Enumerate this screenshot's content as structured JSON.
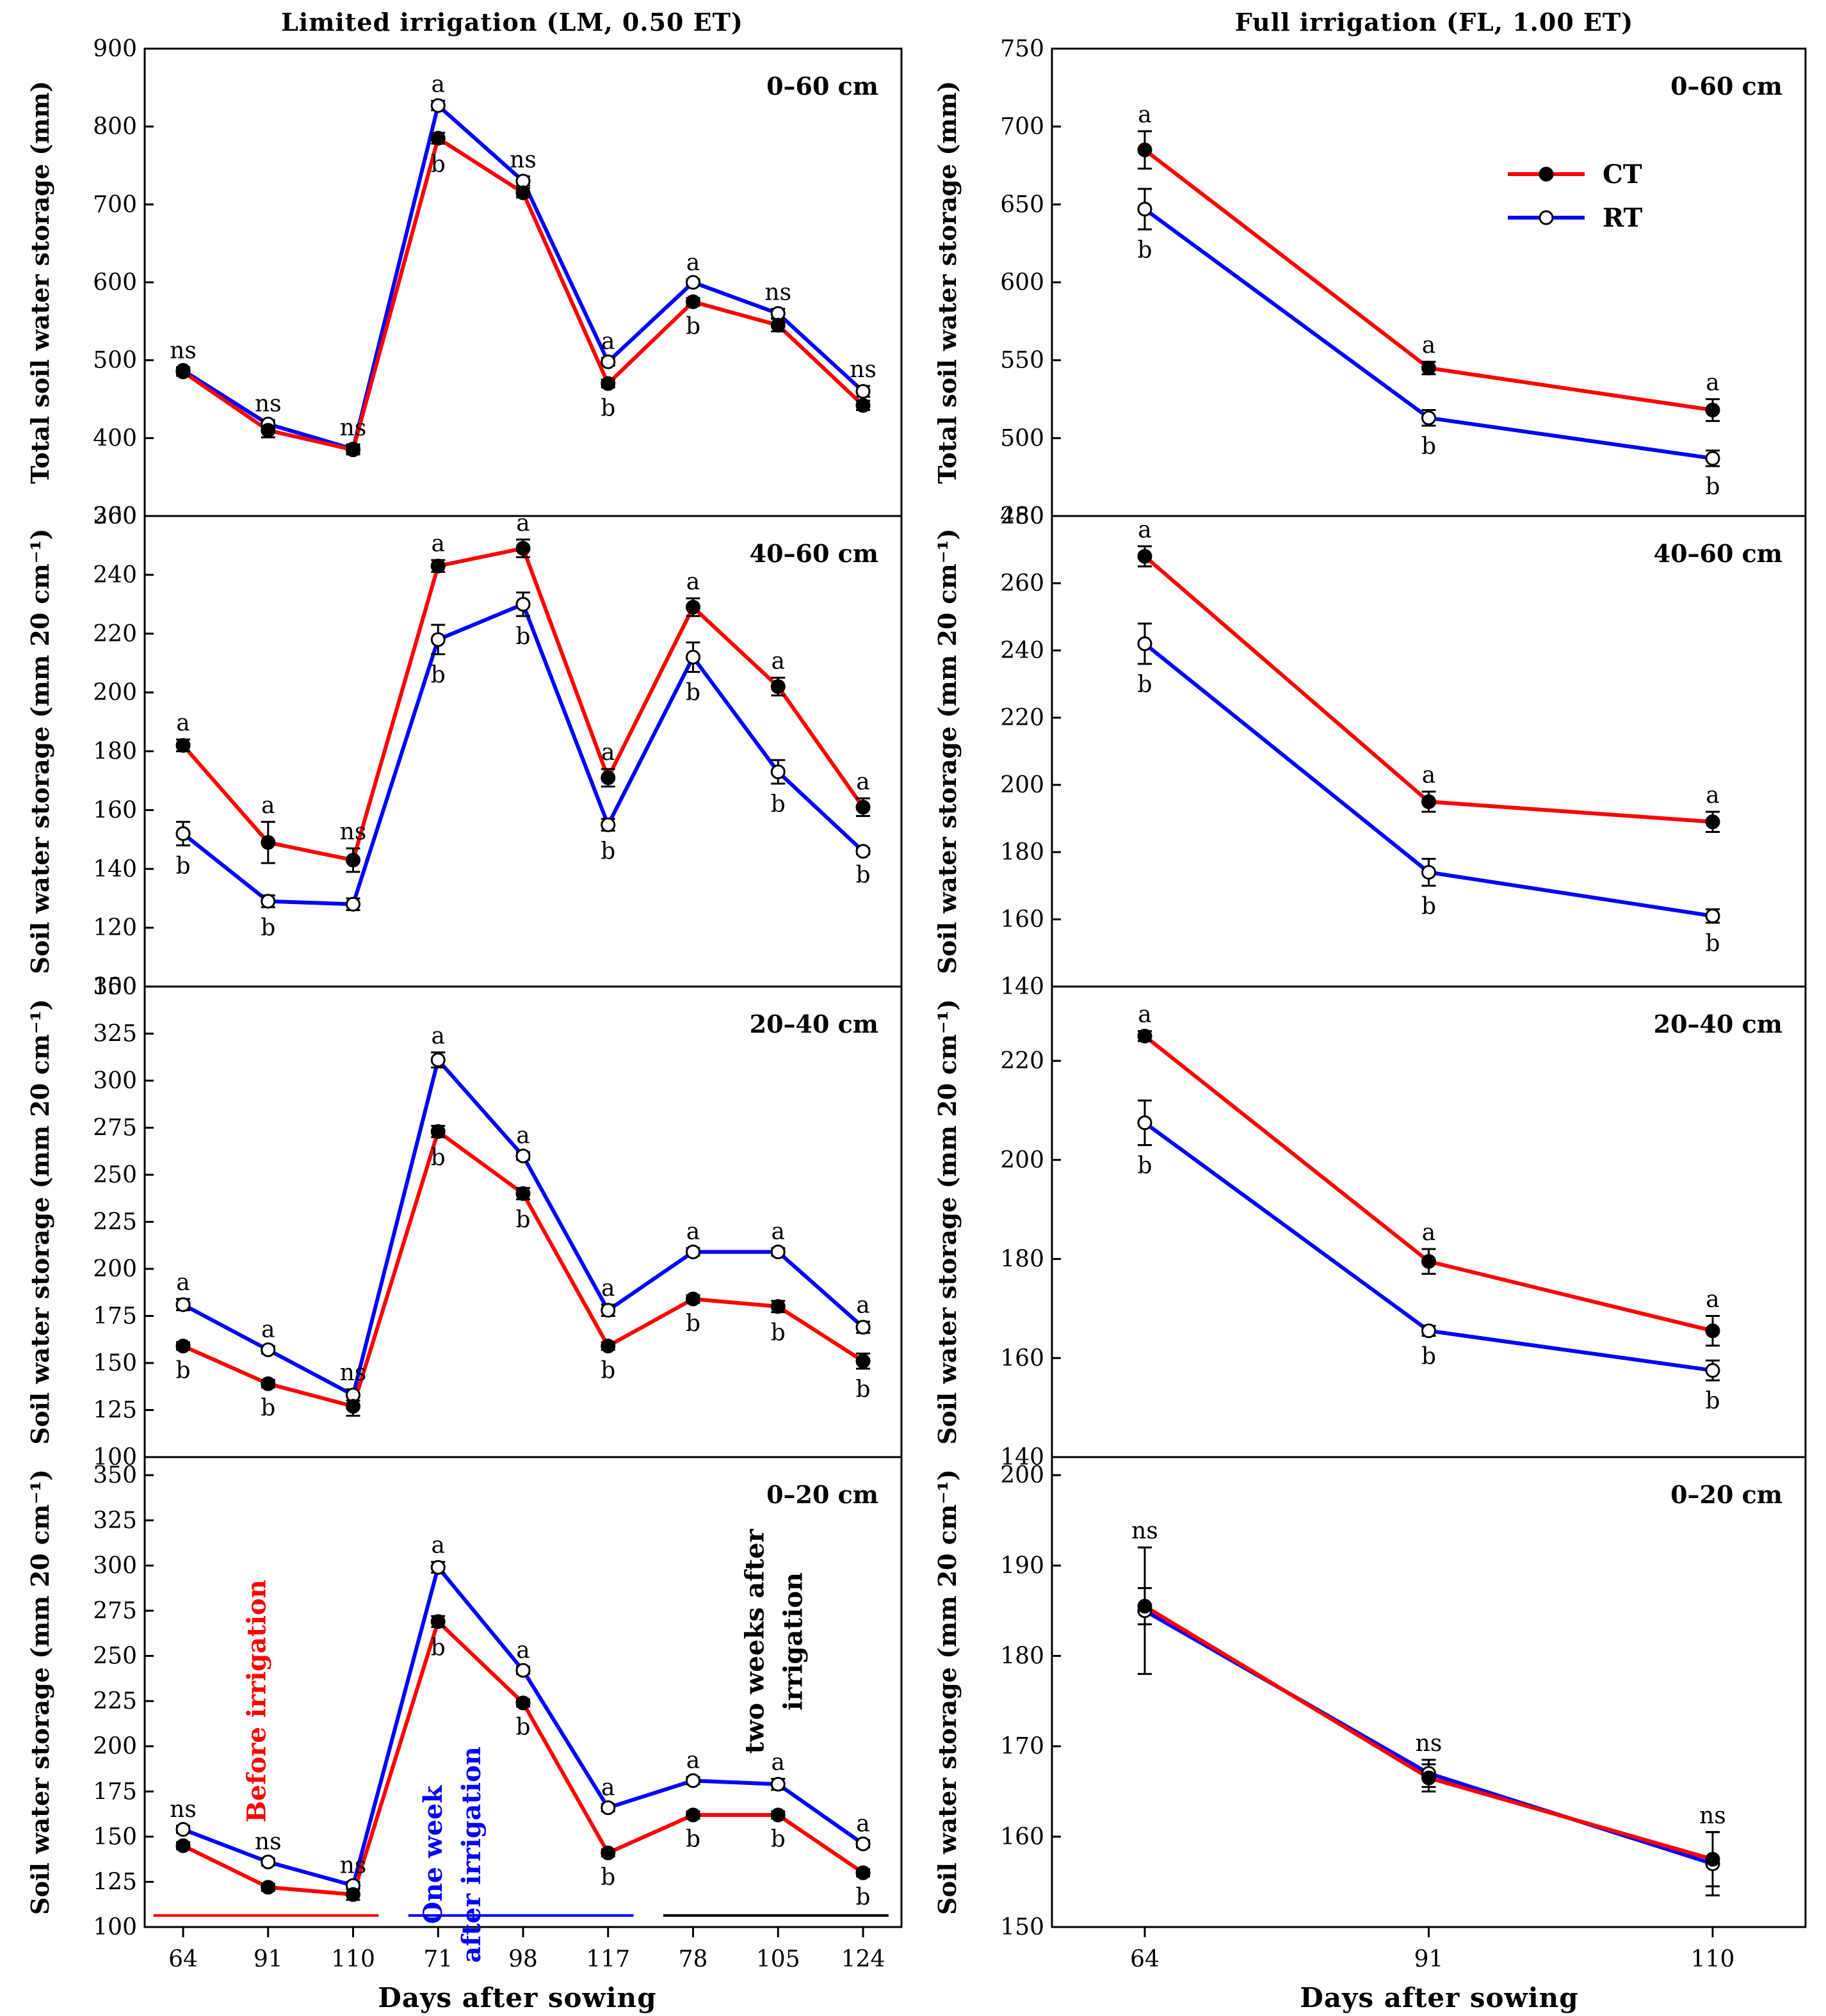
{
  "colors": {
    "CT": "#ff0000",
    "RT": "#0000ff",
    "axis": "#000000",
    "period3": "#000000"
  },
  "column_titles": {
    "left": "Limited irrigation (LM, 0.50 ET)",
    "right": "Full irrigation (FL, 1.00 ET)"
  },
  "xlabel": "Days after sowing",
  "legend": {
    "ct": "CT",
    "rt": "RT"
  },
  "annotations": {
    "before": "Before irrigation",
    "one_week_1": "One week",
    "one_week_2": "after irrigation",
    "two_weeks_1": "two weeks after",
    "two_weeks_2": "irrigation"
  },
  "chart_data": [
    {
      "type": "line",
      "column": "left",
      "row": 0,
      "depth": "0–60 cm",
      "ylabel": "Total soil water storage (mm)",
      "categories": [
        "64",
        "91",
        "110",
        "71",
        "98",
        "117",
        "78",
        "105",
        "124"
      ],
      "ylim": [
        300,
        900
      ],
      "yticks": [
        "300",
        "400",
        "500",
        "600",
        "700",
        "800",
        "900"
      ],
      "series": [
        {
          "name": "CT",
          "values": [
            485,
            410,
            385,
            785,
            715,
            470,
            575,
            545,
            442
          ],
          "errors": [
            5,
            9,
            6,
            7,
            6,
            5,
            5,
            8,
            6
          ]
        },
        {
          "name": "RT",
          "values": [
            487,
            418,
            386,
            827,
            730,
            498,
            600,
            560,
            460
          ],
          "errors": [
            4,
            5,
            6,
            6,
            6,
            5,
            4,
            6,
            7
          ]
        }
      ],
      "labels": [
        {
          "i": 0,
          "text": "ns",
          "pos": "above"
        },
        {
          "i": 1,
          "text": "ns",
          "pos": "above"
        },
        {
          "i": 2,
          "text": "ns",
          "pos": "above"
        },
        {
          "i": 3,
          "text": "a",
          "pos": "above"
        },
        {
          "i": 3,
          "text": "b",
          "pos": "below"
        },
        {
          "i": 4,
          "text": "ns",
          "pos": "above"
        },
        {
          "i": 5,
          "text": "a",
          "pos": "above"
        },
        {
          "i": 5,
          "text": "b",
          "pos": "below"
        },
        {
          "i": 6,
          "text": "a",
          "pos": "above"
        },
        {
          "i": 6,
          "text": "b",
          "pos": "below"
        },
        {
          "i": 7,
          "text": "ns",
          "pos": "above"
        },
        {
          "i": 8,
          "text": "ns",
          "pos": "above"
        }
      ]
    },
    {
      "type": "line",
      "column": "right",
      "row": 0,
      "depth": "0–60 cm",
      "ylabel": "Total soil water storage (mm)",
      "categories": [
        "64",
        "91",
        "110"
      ],
      "ylim": [
        450,
        750
      ],
      "yticks": [
        "450",
        "500",
        "550",
        "600",
        "650",
        "700",
        "750"
      ],
      "series": [
        {
          "name": "CT",
          "values": [
            685,
            545,
            518
          ],
          "errors": [
            12,
            4,
            7
          ]
        },
        {
          "name": "RT",
          "values": [
            647,
            513,
            487
          ],
          "errors": [
            13,
            5,
            5
          ]
        }
      ],
      "labels": [
        {
          "i": 0,
          "text": "a",
          "pos": "above"
        },
        {
          "i": 0,
          "text": "b",
          "pos": "below"
        },
        {
          "i": 1,
          "text": "a",
          "pos": "above"
        },
        {
          "i": 1,
          "text": "b",
          "pos": "below"
        },
        {
          "i": 2,
          "text": "a",
          "pos": "above"
        },
        {
          "i": 2,
          "text": "b",
          "pos": "below"
        }
      ]
    },
    {
      "type": "line",
      "column": "left",
      "row": 1,
      "depth": "40–60 cm",
      "ylabel": "Soil water storage (mm 20 cm⁻¹)",
      "categories": [
        "64",
        "91",
        "110",
        "71",
        "98",
        "117",
        "78",
        "105",
        "124"
      ],
      "ylim": [
        100,
        260
      ],
      "yticks": [
        "100",
        "120",
        "140",
        "160",
        "180",
        "200",
        "220",
        "240",
        "260"
      ],
      "series": [
        {
          "name": "CT",
          "values": [
            182,
            149,
            143,
            243,
            249,
            171,
            229,
            202,
            161
          ],
          "errors": [
            2,
            7,
            4,
            2,
            3,
            3,
            3,
            3,
            3
          ]
        },
        {
          "name": "RT",
          "values": [
            152,
            129,
            128,
            218,
            230,
            155,
            212,
            173,
            146
          ],
          "errors": [
            4,
            2,
            2,
            5,
            4,
            2,
            5,
            4,
            1
          ]
        }
      ],
      "labels": [
        {
          "i": 0,
          "text": "a",
          "pos": "above"
        },
        {
          "i": 0,
          "text": "b",
          "pos": "below"
        },
        {
          "i": 1,
          "text": "a",
          "pos": "above"
        },
        {
          "i": 1,
          "text": "b",
          "pos": "below"
        },
        {
          "i": 2,
          "text": "ns",
          "pos": "above"
        },
        {
          "i": 3,
          "text": "a",
          "pos": "above"
        },
        {
          "i": 3,
          "text": "b",
          "pos": "below"
        },
        {
          "i": 4,
          "text": "a",
          "pos": "above"
        },
        {
          "i": 4,
          "text": "b",
          "pos": "below"
        },
        {
          "i": 5,
          "text": "a",
          "pos": "above"
        },
        {
          "i": 5,
          "text": "b",
          "pos": "below"
        },
        {
          "i": 6,
          "text": "a",
          "pos": "above"
        },
        {
          "i": 6,
          "text": "b",
          "pos": "below"
        },
        {
          "i": 7,
          "text": "a",
          "pos": "above"
        },
        {
          "i": 7,
          "text": "b",
          "pos": "below"
        },
        {
          "i": 8,
          "text": "a",
          "pos": "above"
        },
        {
          "i": 8,
          "text": "b",
          "pos": "below"
        }
      ]
    },
    {
      "type": "line",
      "column": "right",
      "row": 1,
      "depth": "40–60 cm",
      "ylabel": "Soil water storage (mm 20 cm⁻¹)",
      "categories": [
        "64",
        "91",
        "110"
      ],
      "ylim": [
        140,
        280
      ],
      "yticks": [
        "140",
        "160",
        "180",
        "200",
        "220",
        "240",
        "260",
        "280"
      ],
      "series": [
        {
          "name": "CT",
          "values": [
            268,
            195,
            189
          ],
          "errors": [
            3,
            3,
            3
          ]
        },
        {
          "name": "RT",
          "values": [
            242,
            174,
            161
          ],
          "errors": [
            6,
            4,
            2
          ]
        }
      ],
      "labels": [
        {
          "i": 0,
          "text": "a",
          "pos": "above"
        },
        {
          "i": 0,
          "text": "b",
          "pos": "below"
        },
        {
          "i": 1,
          "text": "a",
          "pos": "above"
        },
        {
          "i": 1,
          "text": "b",
          "pos": "below"
        },
        {
          "i": 2,
          "text": "a",
          "pos": "above"
        },
        {
          "i": 2,
          "text": "b",
          "pos": "below"
        }
      ]
    },
    {
      "type": "line",
      "column": "left",
      "row": 2,
      "depth": "20–40 cm",
      "ylabel": "Soil water storage (mm 20 cm⁻¹)",
      "categories": [
        "64",
        "91",
        "110",
        "71",
        "98",
        "117",
        "78",
        "105",
        "124"
      ],
      "ylim": [
        100,
        350
      ],
      "yticks": [
        "100",
        "125",
        "150",
        "175",
        "200",
        "225",
        "250",
        "275",
        "300",
        "325",
        "350"
      ],
      "series": [
        {
          "name": "CT",
          "values": [
            159,
            139,
            127,
            273,
            240,
            159,
            184,
            180,
            151
          ],
          "errors": [
            2,
            2,
            5,
            3,
            3,
            2,
            2,
            3,
            4
          ]
        },
        {
          "name": "RT",
          "values": [
            181,
            157,
            133,
            311,
            260,
            178,
            209,
            209,
            169
          ],
          "errors": [
            3,
            2,
            3,
            4,
            2,
            3,
            2,
            2,
            3
          ]
        }
      ],
      "labels": [
        {
          "i": 0,
          "text": "a",
          "pos": "above"
        },
        {
          "i": 0,
          "text": "b",
          "pos": "below"
        },
        {
          "i": 1,
          "text": "a",
          "pos": "above"
        },
        {
          "i": 1,
          "text": "b",
          "pos": "below"
        },
        {
          "i": 2,
          "text": "ns",
          "pos": "above"
        },
        {
          "i": 3,
          "text": "a",
          "pos": "above"
        },
        {
          "i": 3,
          "text": "b",
          "pos": "below"
        },
        {
          "i": 4,
          "text": "a",
          "pos": "above"
        },
        {
          "i": 4,
          "text": "b",
          "pos": "below"
        },
        {
          "i": 5,
          "text": "a",
          "pos": "above"
        },
        {
          "i": 5,
          "text": "b",
          "pos": "below"
        },
        {
          "i": 6,
          "text": "a",
          "pos": "above"
        },
        {
          "i": 6,
          "text": "b",
          "pos": "below"
        },
        {
          "i": 7,
          "text": "a",
          "pos": "above"
        },
        {
          "i": 7,
          "text": "b",
          "pos": "below"
        },
        {
          "i": 8,
          "text": "a",
          "pos": "above"
        },
        {
          "i": 8,
          "text": "b",
          "pos": "below"
        }
      ]
    },
    {
      "type": "line",
      "column": "right",
      "row": 2,
      "depth": "20–40 cm",
      "ylabel": "Soil water storage (mm 20 cm⁻¹)",
      "categories": [
        "64",
        "91",
        "110"
      ],
      "ylim": [
        140,
        235
      ],
      "yticks": [
        "140",
        "160",
        "180",
        "200",
        "220"
      ],
      "series": [
        {
          "name": "CT",
          "values": [
            225,
            179.5,
            165.5
          ],
          "errors": [
            1,
            2.5,
            3
          ]
        },
        {
          "name": "RT",
          "values": [
            207.5,
            165.5,
            157.5
          ],
          "errors": [
            4.5,
            1,
            2
          ]
        }
      ],
      "labels": [
        {
          "i": 0,
          "text": "a",
          "pos": "above"
        },
        {
          "i": 0,
          "text": "b",
          "pos": "below"
        },
        {
          "i": 1,
          "text": "a",
          "pos": "above"
        },
        {
          "i": 1,
          "text": "b",
          "pos": "below"
        },
        {
          "i": 2,
          "text": "a",
          "pos": "above"
        },
        {
          "i": 2,
          "text": "b",
          "pos": "below"
        }
      ]
    },
    {
      "type": "line",
      "column": "left",
      "row": 3,
      "depth": "0–20 cm",
      "ylabel": "Soil water storage (mm 20 cm⁻¹)",
      "categories": [
        "64",
        "91",
        "110",
        "71",
        "98",
        "117",
        "78",
        "105",
        "124"
      ],
      "ylim": [
        100,
        360
      ],
      "yticks": [
        "100",
        "125",
        "150",
        "175",
        "200",
        "225",
        "250",
        "275",
        "300",
        "325",
        "350"
      ],
      "series": [
        {
          "name": "CT",
          "values": [
            145,
            122,
            118,
            269,
            224,
            141,
            162,
            162,
            130
          ],
          "errors": [
            2,
            2,
            3,
            3,
            2,
            2,
            2,
            2,
            2
          ]
        },
        {
          "name": "RT",
          "values": [
            154,
            136,
            123,
            299,
            242,
            166,
            181,
            179,
            146
          ],
          "errors": [
            2,
            2,
            2,
            3,
            2,
            2,
            2,
            3,
            2
          ]
        }
      ],
      "labels": [
        {
          "i": 0,
          "text": "ns",
          "pos": "above"
        },
        {
          "i": 1,
          "text": "ns",
          "pos": "above"
        },
        {
          "i": 2,
          "text": "ns",
          "pos": "above"
        },
        {
          "i": 3,
          "text": "a",
          "pos": "above"
        },
        {
          "i": 3,
          "text": "b",
          "pos": "below"
        },
        {
          "i": 4,
          "text": "a",
          "pos": "above"
        },
        {
          "i": 4,
          "text": "b",
          "pos": "below"
        },
        {
          "i": 5,
          "text": "a",
          "pos": "above"
        },
        {
          "i": 5,
          "text": "b",
          "pos": "below"
        },
        {
          "i": 6,
          "text": "a",
          "pos": "above"
        },
        {
          "i": 6,
          "text": "b",
          "pos": "below"
        },
        {
          "i": 7,
          "text": "a",
          "pos": "above"
        },
        {
          "i": 7,
          "text": "b",
          "pos": "below"
        },
        {
          "i": 8,
          "text": "a",
          "pos": "above"
        },
        {
          "i": 8,
          "text": "b",
          "pos": "below"
        }
      ],
      "periods": [
        {
          "from": 0,
          "to": 2,
          "color": "CT"
        },
        {
          "from": 3,
          "to": 5,
          "color": "RT"
        },
        {
          "from": 6,
          "to": 8,
          "color": "period3"
        }
      ]
    },
    {
      "type": "line",
      "column": "right",
      "row": 3,
      "depth": "0–20 cm",
      "ylabel": "Soil water storage (mm 20 cm⁻¹)",
      "categories": [
        "64",
        "91",
        "110"
      ],
      "ylim": [
        150,
        202
      ],
      "yticks": [
        "150",
        "160",
        "170",
        "180",
        "190",
        "200"
      ],
      "series": [
        {
          "name": "CT",
          "values": [
            185.5,
            166.5,
            157.5
          ],
          "errors": [
            2,
            1.5,
            3
          ]
        },
        {
          "name": "RT",
          "values": [
            185,
            167,
            157
          ],
          "errors": [
            7,
            1.5,
            3.5
          ]
        }
      ],
      "labels": [
        {
          "i": 0,
          "text": "ns",
          "pos": "above"
        },
        {
          "i": 1,
          "text": "ns",
          "pos": "above"
        },
        {
          "i": 2,
          "text": "ns",
          "pos": "above"
        }
      ]
    }
  ]
}
